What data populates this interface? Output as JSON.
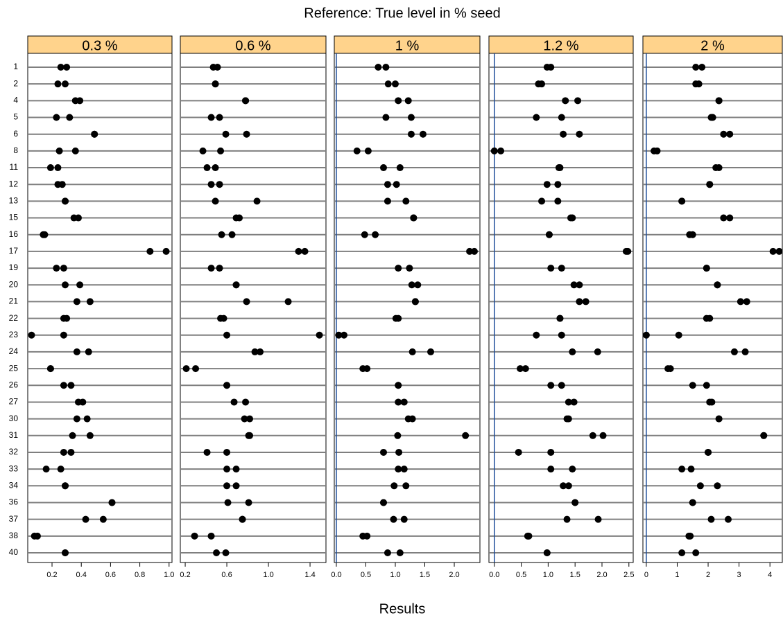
{
  "chart_data": {
    "type": "dotplot",
    "title": "Reference: True level in % seed",
    "x_label": "Results",
    "color": "#000000",
    "strip_color": "#ffd38c",
    "line_color": "#7f7f7f",
    "ref_line": 0,
    "ref_color": "#1f4e9a",
    "categories": [
      "1",
      "2",
      "4",
      "5",
      "6",
      "8",
      "11",
      "12",
      "13",
      "15",
      "16",
      "17",
      "19",
      "20",
      "21",
      "22",
      "23",
      "24",
      "25",
      "26",
      "27",
      "30",
      "31",
      "32",
      "33",
      "34",
      "36",
      "37",
      "38",
      "40"
    ],
    "panels": [
      {
        "title": "0.3 %",
        "xlim": [
          0.034,
          1.02
        ],
        "xticks": [
          0.2,
          0.4,
          0.6,
          0.8,
          {
            "value": 1,
            "label": "1.0"
          }
        ],
        "values": [
          [
            0.26,
            0.3
          ],
          [
            0.24,
            0.29
          ],
          [
            0.36,
            0.39
          ],
          [
            0.23,
            0.32
          ],
          [
            0.49,
            0.49
          ],
          [
            0.25,
            0.36
          ],
          [
            0.19,
            0.24
          ],
          [
            0.24,
            0.27
          ],
          [
            0.29,
            0.29
          ],
          [
            0.35,
            0.38
          ],
          [
            0.14,
            0.15
          ],
          [
            0.87,
            0.98
          ],
          [
            0.23,
            0.28
          ],
          [
            0.29,
            0.39
          ],
          [
            0.37,
            0.46
          ],
          [
            0.28,
            0.3
          ],
          [
            0.06,
            0.28
          ],
          [
            0.37,
            0.45
          ],
          [
            0.19,
            0.19
          ],
          [
            0.28,
            0.33
          ],
          [
            0.38,
            0.41
          ],
          [
            0.37,
            0.44
          ],
          [
            0.34,
            0.46
          ],
          [
            0.28,
            0.33
          ],
          [
            0.16,
            0.26
          ],
          [
            0.29,
            0.29
          ],
          [
            0.61,
            0.61
          ],
          [
            0.43,
            0.55
          ],
          [
            0.08,
            0.1
          ],
          [
            0.29,
            0.29
          ]
        ]
      },
      {
        "title": "0.6 %",
        "xlim": [
          0.153,
          1.553
        ],
        "xticks": [
          0.2,
          0.6,
          {
            "value": 1,
            "label": "1.0"
          },
          1.4
        ],
        "values": [
          [
            0.47,
            0.51
          ],
          [
            0.49,
            0.49
          ],
          [
            0.78,
            0.78
          ],
          [
            0.45,
            0.53
          ],
          [
            0.59,
            0.79
          ],
          [
            0.37,
            0.54
          ],
          [
            0.41,
            0.49
          ],
          [
            0.45,
            0.53
          ],
          [
            0.49,
            0.89
          ],
          [
            0.69,
            0.72
          ],
          [
            0.55,
            0.65
          ],
          [
            1.29,
            1.35
          ],
          [
            0.45,
            0.53
          ],
          [
            0.69,
            0.69
          ],
          [
            0.79,
            1.19
          ],
          [
            0.54,
            0.57
          ],
          [
            0.6,
            1.49
          ],
          [
            0.87,
            0.92
          ],
          [
            0.21,
            0.3
          ],
          [
            0.6,
            0.6
          ],
          [
            0.67,
            0.78
          ],
          [
            0.77,
            0.82
          ],
          [
            0.81,
            0.82
          ],
          [
            0.41,
            0.6
          ],
          [
            0.6,
            0.69
          ],
          [
            0.6,
            0.69
          ],
          [
            0.61,
            0.81
          ],
          [
            0.75,
            0.75
          ],
          [
            0.29,
            0.45
          ],
          [
            0.5,
            0.59
          ]
        ]
      },
      {
        "title": "1 %",
        "xlim": [
          -0.035,
          2.435
        ],
        "xticks": [
          {
            "value": 0,
            "label": "0.0"
          },
          0.5,
          {
            "value": 1,
            "label": "1.0"
          },
          1.5,
          {
            "value": 2,
            "label": "2.0"
          }
        ],
        "values": [
          [
            0.71,
            0.84
          ],
          [
            0.88,
            1
          ],
          [
            1.05,
            1.22
          ],
          [
            0.84,
            1.27
          ],
          [
            1.27,
            1.47
          ],
          [
            0.35,
            0.54
          ],
          [
            0.8,
            1.08
          ],
          [
            0.87,
            1.02
          ],
          [
            0.87,
            1.18
          ],
          [
            1.31,
            1.31
          ],
          [
            0.48,
            0.66
          ],
          [
            2.26,
            2.34
          ],
          [
            1.05,
            1.24
          ],
          [
            1.28,
            1.38
          ],
          [
            1.34,
            1.34
          ],
          [
            1.01,
            1.05
          ],
          [
            0.04,
            0.13
          ],
          [
            1.29,
            1.6
          ],
          [
            0.45,
            0.52
          ],
          [
            1.05,
            1.05
          ],
          [
            1.05,
            1.15
          ],
          [
            1.22,
            1.29
          ],
          [
            1.04,
            2.19
          ],
          [
            0.8,
            1.06
          ],
          [
            1.05,
            1.15
          ],
          [
            0.98,
            1.18
          ],
          [
            0.8,
            0.8
          ],
          [
            0.97,
            1.15
          ],
          [
            0.45,
            0.52
          ],
          [
            0.87,
            1.08
          ]
        ]
      },
      {
        "title": "1.2 %",
        "xlim": [
          -0.1,
          2.58
        ],
        "xticks": [
          {
            "value": 0,
            "label": "0.0"
          },
          0.5,
          {
            "value": 1,
            "label": "1.0"
          },
          1.5,
          {
            "value": 2,
            "label": "2.0"
          },
          2.5
        ],
        "values": [
          [
            0.98,
            1.05
          ],
          [
            0.82,
            0.88
          ],
          [
            1.32,
            1.55
          ],
          [
            0.78,
            1.25
          ],
          [
            1.28,
            1.58
          ],
          [
            0,
            0.12
          ],
          [
            1.2,
            1.22
          ],
          [
            0.98,
            1.18
          ],
          [
            0.88,
            1.18
          ],
          [
            1.42,
            1.45
          ],
          [
            1.02,
            1.02
          ],
          [
            2.45,
            2.48
          ],
          [
            1.05,
            1.25
          ],
          [
            1.48,
            1.58
          ],
          [
            1.58,
            1.7
          ],
          [
            1.22,
            1.22
          ],
          [
            0.78,
            1.25
          ],
          [
            1.45,
            1.92
          ],
          [
            0.48,
            0.58
          ],
          [
            1.05,
            1.25
          ],
          [
            1.38,
            1.48
          ],
          [
            1.35,
            1.38
          ],
          [
            1.83,
            2.02
          ],
          [
            0.45,
            1.05
          ],
          [
            1.05,
            1.45
          ],
          [
            1.28,
            1.38
          ],
          [
            1.5,
            1.5
          ],
          [
            1.35,
            1.93
          ],
          [
            0.62,
            0.64
          ],
          [
            0.98,
            0.98
          ]
        ]
      },
      {
        "title": "2 %",
        "xlim": [
          -0.11,
          4.4
        ],
        "xticks": [
          0,
          1,
          2,
          3,
          4
        ],
        "values": [
          [
            1.6,
            1.8
          ],
          [
            1.6,
            1.7
          ],
          [
            2.35,
            2.35
          ],
          [
            2.1,
            2.15
          ],
          [
            2.5,
            2.7
          ],
          [
            0.25,
            0.35
          ],
          [
            2.25,
            2.35
          ],
          [
            2.05,
            2.05
          ],
          [
            1.15,
            1.15
          ],
          [
            2.5,
            2.7
          ],
          [
            1.4,
            1.5
          ],
          [
            4.1,
            4.3
          ],
          [
            1.95,
            1.95
          ],
          [
            2.3,
            2.3
          ],
          [
            3.05,
            3.25
          ],
          [
            1.95,
            2.05
          ],
          [
            0,
            1.05
          ],
          [
            2.85,
            3.2
          ],
          [
            0.7,
            0.78
          ],
          [
            1.5,
            1.95
          ],
          [
            2.05,
            2.12
          ],
          [
            2.35,
            2.35
          ],
          [
            3.8,
            3.8
          ],
          [
            2,
            2
          ],
          [
            1.15,
            1.45
          ],
          [
            1.75,
            2.3
          ],
          [
            1.5,
            1.5
          ],
          [
            2.1,
            2.65
          ],
          [
            1.38,
            1.42
          ],
          [
            1.15,
            1.6
          ]
        ]
      }
    ]
  }
}
